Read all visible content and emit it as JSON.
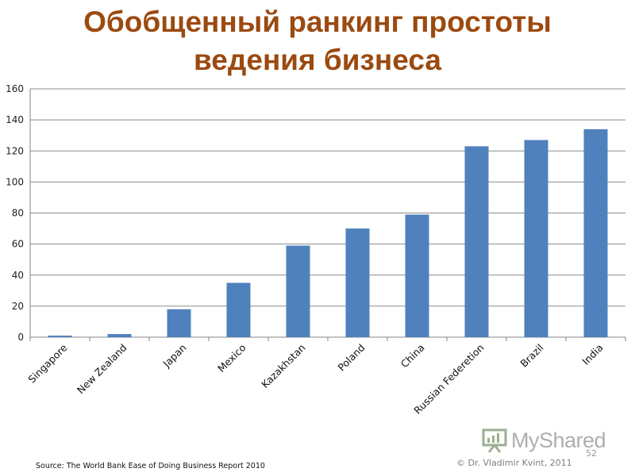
{
  "page": {
    "title_line1": "Обобщенный ранкинг простоты",
    "title_line2": "ведения бизнеса",
    "source": "Source: The World Bank Ease of Doing Business Report 2010",
    "copyright": "© Dr. Vladimir Kvint, 2011",
    "page_number": "52",
    "watermark": "MyShared",
    "watermark_icon": "presentation-board-icon",
    "bar_color": "#4f81bd",
    "title_color": "#9b4a10"
  },
  "chart_data": {
    "type": "bar",
    "title": "Обобщенный ранкинг простоты ведения бизнеса",
    "categories": [
      "Singapore",
      "New Zealand",
      "Japan",
      "Mexico",
      "Kazakhstan",
      "Poland",
      "China",
      "Russian Federetion",
      "Brazil",
      "India"
    ],
    "values": [
      1,
      2,
      18,
      35,
      59,
      70,
      79,
      123,
      127,
      134
    ],
    "ylim": [
      0,
      160
    ],
    "yticks": [
      0,
      20,
      40,
      60,
      80,
      100,
      120,
      140,
      160
    ],
    "xlabel": "",
    "ylabel": "",
    "grid": true,
    "legend": "none"
  }
}
